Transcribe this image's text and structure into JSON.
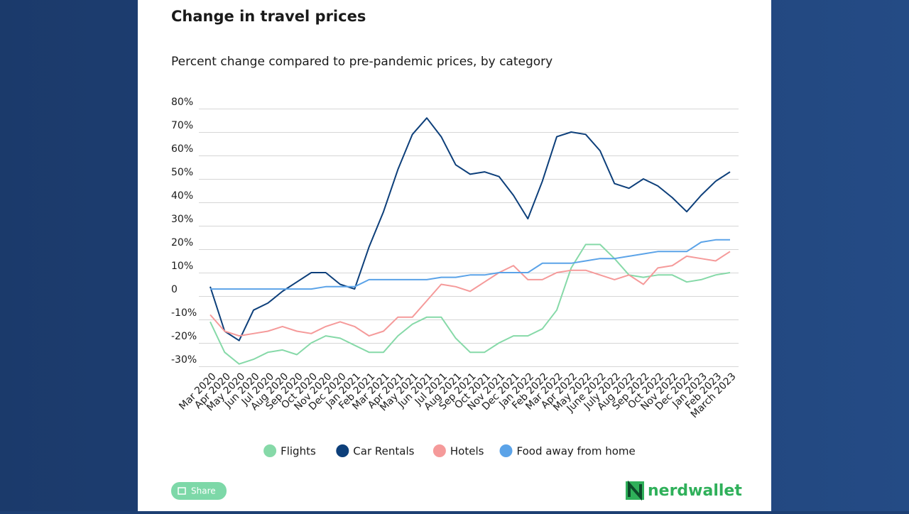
{
  "chart_data": {
    "type": "line",
    "title": "Change in travel prices",
    "subtitle": "Percent change compared to pre-pandemic prices, by category",
    "categories": [
      "Mar 2020",
      "Apr 2020",
      "May 2020",
      "Jun 2020",
      "Jul 2020",
      "Aug 2020",
      "Sep 2020",
      "Oct 2020",
      "Nov 2020",
      "Dec 2020",
      "Jan 2021",
      "Feb 2021",
      "Mar 2021",
      "Apr 2021",
      "May 2021",
      "Jun 2021",
      "Jul 2021",
      "Aug 2021",
      "Sep 2021",
      "Oct 2021",
      "Nov 2021",
      "Dec 2021",
      "Jan 2022",
      "Feb 2022",
      "Mar 2022",
      "Apr 2022",
      "May 2022",
      "June 2022",
      "July 2022",
      "Aug 2022",
      "Sep 2022",
      "Oct 2022",
      "Nov 2022",
      "Dec 2022",
      "Jan 2023",
      "Feb 2023",
      "March 2023"
    ],
    "series": [
      {
        "name": "Flights",
        "color": "#86d9a8",
        "values": [
          -11,
          -24,
          -29,
          -27,
          -24,
          -23,
          -25,
          -20,
          -17,
          -18,
          -21,
          -24,
          -24,
          -17,
          -12,
          -9,
          -9,
          -18,
          -24,
          -24,
          -20,
          -17,
          -17,
          -14,
          -6,
          12,
          22,
          22,
          16,
          9,
          8,
          9,
          9,
          6,
          7,
          9,
          10
        ]
      },
      {
        "name": "Car Rentals",
        "color": "#0d3f7a",
        "values": [
          4,
          -15,
          -19,
          -6,
          -3,
          2,
          6,
          10,
          10,
          5,
          3,
          21,
          36,
          54,
          69,
          76,
          68,
          56,
          52,
          53,
          51,
          43,
          33,
          49,
          68,
          70,
          69,
          62,
          48,
          46,
          50,
          47,
          42,
          36,
          43,
          49,
          53
        ]
      },
      {
        "name": "Hotels",
        "color": "#f59a9a",
        "values": [
          -8,
          -15,
          -17,
          -16,
          -15,
          -13,
          -15,
          -16,
          -13,
          -11,
          -13,
          -17,
          -15,
          -9,
          -9,
          -2,
          5,
          4,
          2,
          6,
          10,
          13,
          7,
          7,
          10,
          11,
          11,
          9,
          7,
          9,
          5,
          12,
          13,
          17,
          16,
          15,
          19
        ]
      },
      {
        "name": "Food away from home",
        "color": "#5ba3e8",
        "values": [
          3,
          3,
          3,
          3,
          3,
          3,
          3,
          3,
          4,
          4,
          4,
          7,
          7,
          7,
          7,
          7,
          8,
          8,
          9,
          9,
          10,
          10,
          10,
          14,
          14,
          14,
          15,
          16,
          16,
          17,
          18,
          19,
          19,
          19,
          23,
          24,
          24
        ]
      }
    ],
    "ylim": [
      -30,
      80
    ],
    "yticks": [
      {
        "value": -30,
        "label": "-30%"
      },
      {
        "value": -20,
        "label": "-20%"
      },
      {
        "value": -10,
        "label": "-10%"
      },
      0,
      {
        "value": 10,
        "label": "10%"
      },
      {
        "value": 20,
        "label": "20%"
      },
      {
        "value": 30,
        "label": "30%"
      },
      {
        "value": 40,
        "label": "40%"
      },
      {
        "value": 50,
        "label": "50%"
      },
      {
        "value": 60,
        "label": "60%"
      },
      {
        "value": 70,
        "label": "70%"
      },
      {
        "value": 80,
        "label": "80%"
      }
    ],
    "grid": true
  },
  "share_button": "Share",
  "logo": "nerdwallet"
}
